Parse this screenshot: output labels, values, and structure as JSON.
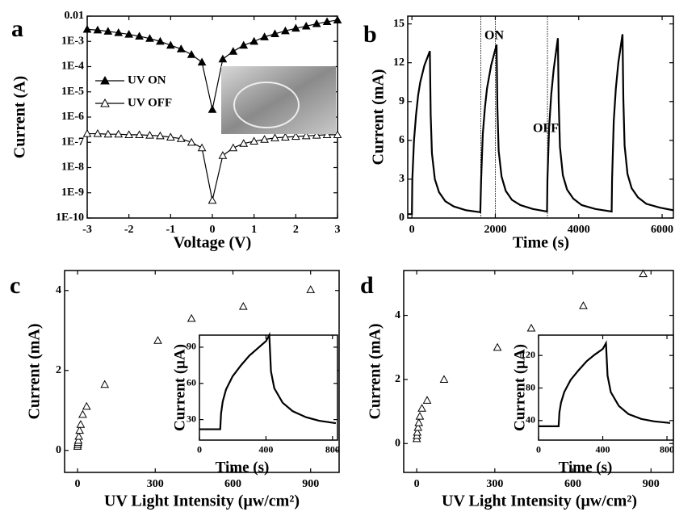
{
  "chart_data": [
    {
      "type": "line",
      "label": "a",
      "xlabel": "Voltage (V)",
      "ylabel": "Current (A)",
      "log_y": true,
      "markers": true,
      "xlim": [
        -3,
        3
      ],
      "xticks": [
        -3,
        -2,
        -1,
        0,
        1,
        2,
        3
      ],
      "ylim": [
        1e-10,
        0.01
      ],
      "yticks": [
        {
          "value": 1e-10,
          "label": "1E-10"
        },
        {
          "value": 1e-09,
          "label": "1E-9"
        },
        {
          "value": 1e-08,
          "label": "1E-8"
        },
        {
          "value": 1e-07,
          "label": "1E-7"
        },
        {
          "value": 1e-06,
          "label": "1E-6"
        },
        {
          "value": 1e-05,
          "label": "1E-5"
        },
        {
          "value": 0.0001,
          "label": "1E-4"
        },
        {
          "value": 0.001,
          "label": "1E-3"
        },
        0.01
      ],
      "x": [
        -3,
        -2.75,
        -2.5,
        -2.25,
        -2,
        -1.75,
        -1.5,
        -1.25,
        -1,
        -0.75,
        -0.5,
        -0.25,
        0,
        0.25,
        0.5,
        0.75,
        1,
        1.25,
        1.5,
        1.75,
        2,
        2.25,
        2.5,
        2.75,
        3
      ],
      "series": [
        {
          "name": "UV ON",
          "color": "#000000",
          "filled": true,
          "values": [
            0.003,
            0.0028,
            0.0025,
            0.0022,
            0.0019,
            0.0016,
            0.0013,
            0.001,
            0.0007,
            0.0005,
            0.0003,
            0.00015,
            2e-06,
            0.0002,
            0.0004,
            0.0007,
            0.001,
            0.0015,
            0.002,
            0.0026,
            0.0033,
            0.004,
            0.005,
            0.006,
            0.007
          ]
        },
        {
          "name": "UV OFF",
          "color": "#000000",
          "filled": false,
          "values": [
            2.2e-07,
            2.2e-07,
            2.1e-07,
            2.1e-07,
            2e-07,
            2e-07,
            1.9e-07,
            1.8e-07,
            1.6e-07,
            1.4e-07,
            1e-07,
            6e-08,
            5e-10,
            3e-08,
            6e-08,
            9e-08,
            1.1e-07,
            1.3e-07,
            1.5e-07,
            1.6e-07,
            1.7e-07,
            1.8e-07,
            1.9e-07,
            2e-07,
            2e-07
          ]
        }
      ]
    },
    {
      "type": "line",
      "label": "b",
      "xlabel": "Time (s)",
      "ylabel": "Current (mA)",
      "annotations": [
        "ON",
        "OFF"
      ],
      "xlim": [
        -100,
        6270
      ],
      "xticks": [
        0,
        2000,
        4000,
        6000
      ],
      "ylim": [
        0,
        15.6
      ],
      "yticks": [
        0,
        3,
        6,
        9,
        12,
        15
      ],
      "vlines": [
        1650,
        2000,
        3250
      ],
      "x": [
        -100,
        0,
        10,
        50,
        100,
        150,
        200,
        300,
        430,
        450,
        480,
        550,
        650,
        800,
        1000,
        1300,
        1640,
        1660,
        1700,
        1750,
        1800,
        1900,
        2030,
        2050,
        2080,
        2150,
        2250,
        2400,
        2600,
        2900,
        3240,
        3250,
        3290,
        3340,
        3400,
        3500,
        3520,
        3550,
        3620,
        3720,
        3870,
        4070,
        4400,
        4790,
        4800,
        4840,
        4890,
        4950,
        5050,
        5070,
        5100,
        5170,
        5270,
        5420,
        5620,
        5950,
        6270
      ],
      "values": [
        0.3,
        0.3,
        3,
        6,
        8,
        9.5,
        10.5,
        11.8,
        12.9,
        8,
        5,
        3,
        2,
        1.3,
        0.9,
        0.6,
        0.45,
        3,
        6.5,
        8.5,
        10,
        11.8,
        13.4,
        8.5,
        5.2,
        3.2,
        2.1,
        1.4,
        1,
        0.7,
        0.5,
        3,
        7,
        9.5,
        11.5,
        13.9,
        9,
        5.5,
        3.3,
        2.2,
        1.5,
        1,
        0.7,
        0.5,
        3,
        7.5,
        10,
        12,
        14.2,
        9.2,
        5.6,
        3.4,
        2.3,
        1.6,
        1.1,
        0.8,
        0.6
      ],
      "color": "#000000"
    },
    {
      "type": "scatter",
      "label": "c",
      "xlabel": "UV Light Intensity (μw/cm²)",
      "ylabel": "Current (mA)",
      "xlim": [
        -50,
        1010
      ],
      "xticks": [
        0,
        300,
        600,
        900
      ],
      "ylim": [
        -0.55,
        4.5
      ],
      "yticks": [
        0,
        2,
        4
      ],
      "x": [
        0,
        1,
        2,
        3,
        5,
        8,
        12,
        20,
        35,
        105,
        310,
        440,
        640,
        900
      ],
      "values": [
        0.1,
        0.15,
        0.2,
        0.25,
        0.35,
        0.5,
        0.65,
        0.9,
        1.1,
        1.65,
        2.75,
        3.3,
        3.6,
        4.02
      ],
      "color": "#000000"
    },
    {
      "type": "line",
      "xlabel": "Time (s)",
      "ylabel": "Current (μA)",
      "xlim": [
        0,
        830
      ],
      "xticks": [
        0,
        400,
        800
      ],
      "ylim": [
        13,
        100
      ],
      "yticks": [
        30,
        60,
        90
      ],
      "x": [
        0,
        60,
        125,
        130,
        140,
        160,
        200,
        250,
        300,
        350,
        400,
        420,
        430,
        450,
        500,
        560,
        640,
        720,
        820
      ],
      "values": [
        22,
        22,
        22,
        35,
        45,
        55,
        66,
        75,
        83,
        89,
        95,
        100,
        70,
        56,
        44,
        37,
        32,
        29,
        27
      ],
      "color": "#000000"
    },
    {
      "type": "scatter",
      "label": "d",
      "xlabel": "UV Light Intensity (μw/cm²)",
      "ylabel": "Current (mA)",
      "xlim": [
        -50,
        986
      ],
      "xticks": [
        0,
        300,
        600,
        900
      ],
      "ylim": [
        -0.9,
        5.4
      ],
      "yticks": [
        0,
        2,
        4
      ],
      "x": [
        0,
        1,
        2,
        5,
        8,
        12,
        20,
        40,
        105,
        310,
        440,
        640,
        870
      ],
      "values": [
        0.15,
        0.25,
        0.35,
        0.5,
        0.65,
        0.85,
        1.1,
        1.35,
        2.0,
        3.0,
        3.6,
        4.3,
        5.3
      ],
      "color": "#000000"
    },
    {
      "type": "line",
      "xlabel": "Time (s)",
      "ylabel": "Current (μA)",
      "xlim": [
        0,
        840
      ],
      "xticks": [
        0,
        400,
        800
      ],
      "ylim": [
        16,
        145
      ],
      "yticks": [
        40,
        80,
        120
      ],
      "x": [
        0,
        60,
        125,
        130,
        140,
        160,
        200,
        250,
        300,
        350,
        400,
        420,
        430,
        450,
        500,
        560,
        640,
        720,
        820
      ],
      "values": [
        33,
        33,
        33,
        50,
        62,
        75,
        90,
        102,
        113,
        121,
        128,
        135,
        95,
        75,
        58,
        48,
        42,
        39,
        37
      ],
      "color": "#000000"
    }
  ]
}
